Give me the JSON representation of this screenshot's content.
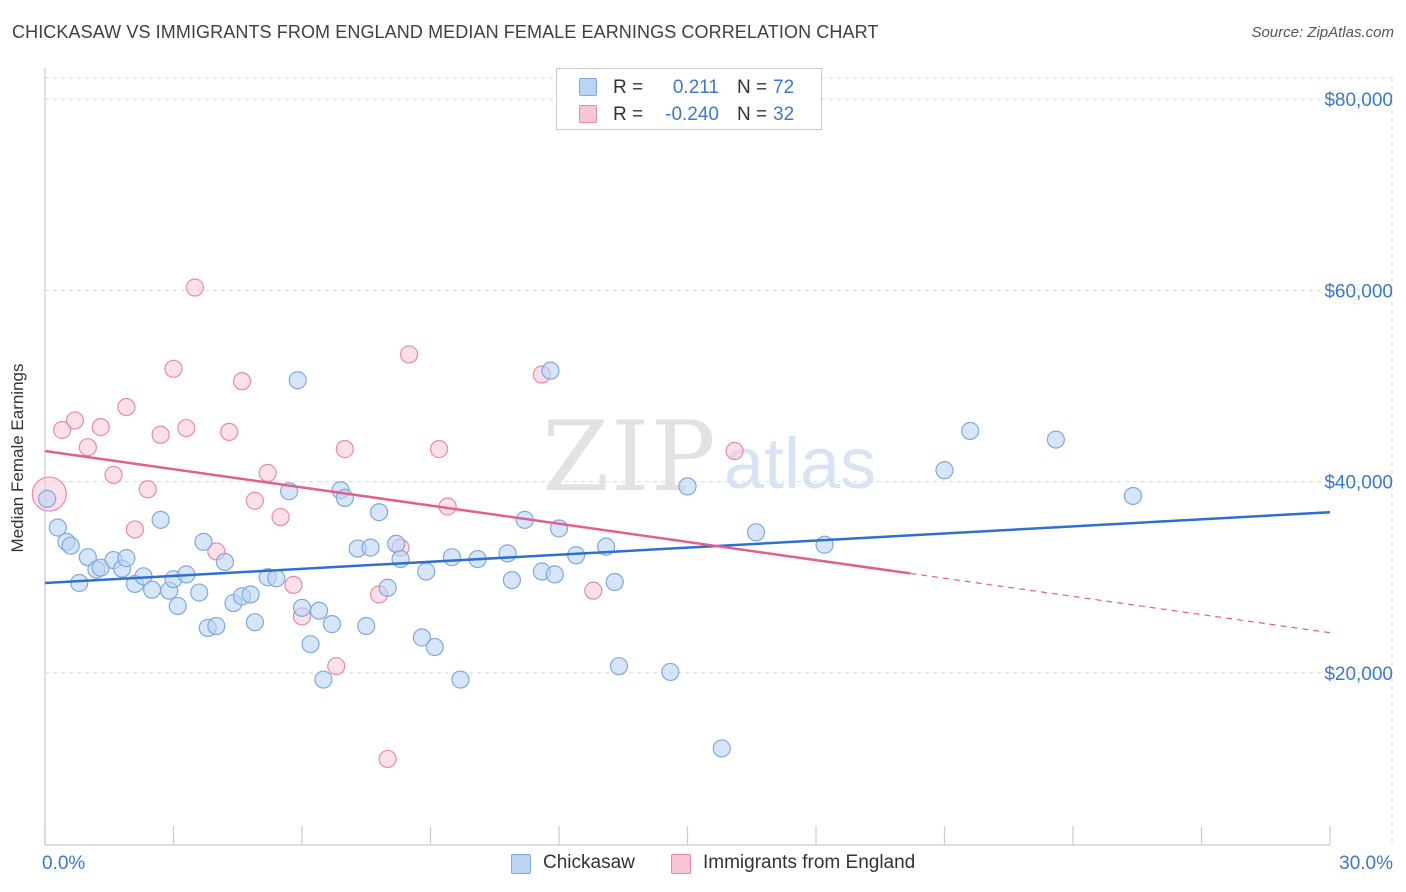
{
  "title": "CHICKASAW VS IMMIGRANTS FROM ENGLAND MEDIAN FEMALE EARNINGS CORRELATION CHART",
  "source": "Source: ZipAtlas.com",
  "watermark": {
    "zip": "ZIP",
    "atlas": "atlas"
  },
  "legend": {
    "rows": [
      {
        "r_label": "R =",
        "r_value": "0.211",
        "n_label": "N =",
        "n_value": "72"
      },
      {
        "r_label": "R =",
        "r_value": "-0.240",
        "n_label": "N =",
        "n_value": "32"
      }
    ],
    "bottom": [
      "Chickasaw",
      "Immigrants from England"
    ]
  },
  "colors": {
    "blue_fill": "#bcd4f3",
    "blue_stroke": "#7fa9e0",
    "blue_line": "#2f6fce",
    "pink_fill": "#f7c6d5",
    "pink_stroke": "#e98aaa",
    "pink_line": "#e0628c",
    "axis_value": "#3b78d0"
  },
  "chart_data": {
    "type": "scatter",
    "title": "CHICKASAW VS IMMIGRANTS FROM ENGLAND MEDIAN FEMALE EARNINGS CORRELATION CHART",
    "xlabel": "",
    "ylabel": "Median Female Earnings",
    "xlim": [
      0,
      30
    ],
    "ylim": [
      2000,
      82000
    ],
    "x_tick_labels": [
      "0.0%",
      "30.0%"
    ],
    "y_ticks": [
      20000,
      40000,
      60000,
      80000
    ],
    "y_tick_labels": [
      "$20,000",
      "$40,000",
      "$60,000",
      "$80,000"
    ],
    "grid": true,
    "legend_position": "top-center",
    "series": [
      {
        "name": "Chickasaw",
        "r": 0.211,
        "n": 72,
        "trend": {
          "x": [
            0,
            30
          ],
          "y": [
            29400,
            36800
          ]
        },
        "points": [
          [
            0.05,
            38200
          ],
          [
            0.3,
            35200
          ],
          [
            0.5,
            33700
          ],
          [
            0.6,
            33300
          ],
          [
            0.8,
            29400
          ],
          [
            1.0,
            32100
          ],
          [
            1.2,
            30800
          ],
          [
            1.3,
            31000
          ],
          [
            1.6,
            31800
          ],
          [
            1.8,
            30900
          ],
          [
            1.9,
            32000
          ],
          [
            2.1,
            29300
          ],
          [
            2.3,
            30100
          ],
          [
            2.5,
            28700
          ],
          [
            2.7,
            36000
          ],
          [
            2.9,
            28600
          ],
          [
            3.0,
            29800
          ],
          [
            3.1,
            27000
          ],
          [
            3.3,
            30300
          ],
          [
            3.6,
            28400
          ],
          [
            3.7,
            33700
          ],
          [
            3.8,
            24700
          ],
          [
            4.0,
            24900
          ],
          [
            4.2,
            31600
          ],
          [
            4.4,
            27300
          ],
          [
            4.6,
            28000
          ],
          [
            4.8,
            28200
          ],
          [
            4.9,
            25300
          ],
          [
            5.2,
            30000
          ],
          [
            5.4,
            29900
          ],
          [
            5.7,
            39000
          ],
          [
            5.9,
            50600
          ],
          [
            6.0,
            26800
          ],
          [
            6.2,
            23000
          ],
          [
            6.4,
            26500
          ],
          [
            6.5,
            19300
          ],
          [
            6.7,
            25100
          ],
          [
            6.9,
            39100
          ],
          [
            7.0,
            38300
          ],
          [
            7.3,
            33000
          ],
          [
            7.5,
            24900
          ],
          [
            7.6,
            33100
          ],
          [
            7.8,
            36800
          ],
          [
            8.0,
            28900
          ],
          [
            8.2,
            33500
          ],
          [
            8.3,
            31900
          ],
          [
            8.9,
            30600
          ],
          [
            8.8,
            23700
          ],
          [
            9.1,
            22700
          ],
          [
            9.5,
            32100
          ],
          [
            9.7,
            19300
          ],
          [
            10.1,
            31900
          ],
          [
            10.8,
            32500
          ],
          [
            10.9,
            29700
          ],
          [
            11.2,
            36000
          ],
          [
            11.6,
            30600
          ],
          [
            11.8,
            51600
          ],
          [
            11.9,
            30300
          ],
          [
            12.0,
            35100
          ],
          [
            12.4,
            32300
          ],
          [
            13.1,
            33200
          ],
          [
            13.3,
            29500
          ],
          [
            13.4,
            20700
          ],
          [
            14.6,
            20100
          ],
          [
            15.0,
            39500
          ],
          [
            15.8,
            12100
          ],
          [
            16.6,
            34700
          ],
          [
            18.2,
            33400
          ],
          [
            21.0,
            41200
          ],
          [
            21.6,
            45300
          ],
          [
            23.6,
            44400
          ],
          [
            25.4,
            38500
          ]
        ]
      },
      {
        "name": "Immigrants from England",
        "r": -0.24,
        "n": 32,
        "trend": {
          "x": [
            0,
            20.2
          ],
          "y": [
            43200,
            30400
          ]
        },
        "trend_dashed": {
          "x": [
            20.2,
            30
          ],
          "y": [
            30400,
            24200
          ]
        },
        "points": [
          [
            0.1,
            38700
          ],
          [
            0.4,
            45400
          ],
          [
            0.7,
            46400
          ],
          [
            1.0,
            43600
          ],
          [
            1.3,
            45700
          ],
          [
            1.6,
            40700
          ],
          [
            1.9,
            47800
          ],
          [
            2.1,
            35000
          ],
          [
            2.4,
            39200
          ],
          [
            2.7,
            44900
          ],
          [
            3.0,
            51800
          ],
          [
            3.3,
            45600
          ],
          [
            3.5,
            60300
          ],
          [
            4.0,
            32700
          ],
          [
            4.3,
            45200
          ],
          [
            4.6,
            50500
          ],
          [
            4.9,
            38000
          ],
          [
            5.2,
            40900
          ],
          [
            5.5,
            36300
          ],
          [
            5.8,
            29200
          ],
          [
            6.0,
            25900
          ],
          [
            6.8,
            20700
          ],
          [
            7.0,
            43400
          ],
          [
            7.8,
            28200
          ],
          [
            8.0,
            11000
          ],
          [
            8.3,
            33100
          ],
          [
            8.5,
            53300
          ],
          [
            9.2,
            43400
          ],
          [
            9.4,
            37400
          ],
          [
            11.6,
            51200
          ],
          [
            12.8,
            28600
          ],
          [
            16.1,
            43200
          ]
        ]
      }
    ]
  }
}
